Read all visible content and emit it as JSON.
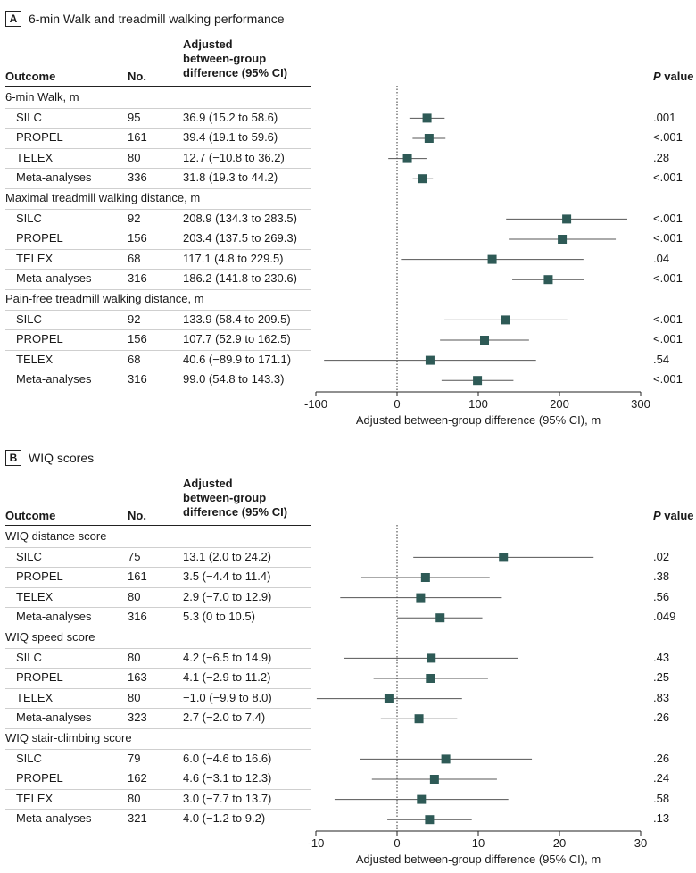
{
  "chart_data": [
    {
      "type": "forest",
      "panel": "A",
      "title": "6-min Walk and treadmill walking performance",
      "columns": {
        "outcome": "Outcome",
        "no": "No.",
        "diff": [
          "Adjusted",
          "between-group",
          "difference (95% CI)"
        ],
        "p_italic": "P",
        "p_rest": " value"
      },
      "xlabel": "Adjusted between-group difference (95% CI), m",
      "xlim": [
        -100,
        300
      ],
      "xticks": [
        -100,
        0,
        100,
        200,
        300
      ],
      "xtick_labels": [
        "-100",
        "0",
        "100",
        "200",
        "300"
      ],
      "groups": [
        {
          "title": "6-min Walk, m",
          "rows": [
            {
              "label": "SILC",
              "n": "95",
              "text": "36.9 (15.2 to 58.6)",
              "est": 36.9,
              "lo": 15.2,
              "hi": 58.6,
              "p": ".001"
            },
            {
              "label": "PROPEL",
              "n": "161",
              "text": "39.4 (19.1 to 59.6)",
              "est": 39.4,
              "lo": 19.1,
              "hi": 59.6,
              "p": "<.001"
            },
            {
              "label": "TELEX",
              "n": "80",
              "text": "12.7 (−10.8 to 36.2)",
              "est": 12.7,
              "lo": -10.8,
              "hi": 36.2,
              "p": ".28"
            },
            {
              "label": "Meta-analyses",
              "n": "336",
              "text": "31.8 (19.3 to 44.2)",
              "est": 31.8,
              "lo": 19.3,
              "hi": 44.2,
              "p": "<.001"
            }
          ]
        },
        {
          "title": "Maximal treadmill walking distance, m",
          "rows": [
            {
              "label": "SILC",
              "n": "92",
              "text": "208.9 (134.3 to 283.5)",
              "est": 208.9,
              "lo": 134.3,
              "hi": 283.5,
              "p": "<.001"
            },
            {
              "label": "PROPEL",
              "n": "156",
              "text": "203.4 (137.5 to 269.3)",
              "est": 203.4,
              "lo": 137.5,
              "hi": 269.3,
              "p": "<.001"
            },
            {
              "label": "TELEX",
              "n": "68",
              "text": "117.1 (4.8 to 229.5)",
              "est": 117.1,
              "lo": 4.8,
              "hi": 229.5,
              "p": ".04"
            },
            {
              "label": "Meta-analyses",
              "n": "316",
              "text": "186.2 (141.8 to 230.6)",
              "est": 186.2,
              "lo": 141.8,
              "hi": 230.6,
              "p": "<.001"
            }
          ]
        },
        {
          "title": "Pain-free treadmill walking distance, m",
          "rows": [
            {
              "label": "SILC",
              "n": "92",
              "text": "133.9 (58.4 to 209.5)",
              "est": 133.9,
              "lo": 58.4,
              "hi": 209.5,
              "p": "<.001"
            },
            {
              "label": "PROPEL",
              "n": "156",
              "text": "107.7 (52.9 to 162.5)",
              "est": 107.7,
              "lo": 52.9,
              "hi": 162.5,
              "p": "<.001"
            },
            {
              "label": "TELEX",
              "n": "68",
              "text": "40.6 (−89.9 to 171.1)",
              "est": 40.6,
              "lo": -89.9,
              "hi": 171.1,
              "p": ".54"
            },
            {
              "label": "Meta-analyses",
              "n": "316",
              "text": "99.0 (54.8 to 143.3)",
              "est": 99.0,
              "lo": 54.8,
              "hi": 143.3,
              "p": "<.001"
            }
          ]
        }
      ]
    },
    {
      "type": "forest",
      "panel": "B",
      "title": "WIQ scores",
      "columns": {
        "outcome": "Outcome",
        "no": "No.",
        "diff": [
          "Adjusted",
          "between-group",
          "difference (95% CI)"
        ],
        "p_italic": "P",
        "p_rest": " value"
      },
      "xlabel": "Adjusted between-group difference (95% CI), m",
      "xlim": [
        -10,
        30
      ],
      "xticks": [
        -10,
        0,
        10,
        20,
        30
      ],
      "xtick_labels": [
        "-10",
        "0",
        "10",
        "20",
        "30"
      ],
      "groups": [
        {
          "title": "WIQ distance score",
          "rows": [
            {
              "label": "SILC",
              "n": "75",
              "text": "13.1 (2.0 to 24.2)",
              "est": 13.1,
              "lo": 2.0,
              "hi": 24.2,
              "p": ".02"
            },
            {
              "label": "PROPEL",
              "n": "161",
              "text": "3.5 (−4.4 to 11.4)",
              "est": 3.5,
              "lo": -4.4,
              "hi": 11.4,
              "p": ".38"
            },
            {
              "label": "TELEX",
              "n": "80",
              "text": "2.9 (−7.0 to 12.9)",
              "est": 2.9,
              "lo": -7.0,
              "hi": 12.9,
              "p": ".56"
            },
            {
              "label": "Meta-analyses",
              "n": "316",
              "text": "5.3 (0 to 10.5)",
              "est": 5.3,
              "lo": 0.0,
              "hi": 10.5,
              "p": ".049"
            }
          ]
        },
        {
          "title": "WIQ speed score",
          "rows": [
            {
              "label": "SILC",
              "n": "80",
              "text": "4.2 (−6.5 to 14.9)",
              "est": 4.2,
              "lo": -6.5,
              "hi": 14.9,
              "p": ".43"
            },
            {
              "label": "PROPEL",
              "n": "163",
              "text": "4.1 (−2.9 to 11.2)",
              "est": 4.1,
              "lo": -2.9,
              "hi": 11.2,
              "p": ".25"
            },
            {
              "label": "TELEX",
              "n": "80",
              "text": "−1.0 (−9.9 to 8.0)",
              "est": -1.0,
              "lo": -9.9,
              "hi": 8.0,
              "p": ".83"
            },
            {
              "label": "Meta-analyses",
              "n": "323",
              "text": "2.7 (−2.0 to 7.4)",
              "est": 2.7,
              "lo": -2.0,
              "hi": 7.4,
              "p": ".26"
            }
          ]
        },
        {
          "title": "WIQ stair-climbing score",
          "rows": [
            {
              "label": "SILC",
              "n": "79",
              "text": "6.0 (−4.6 to 16.6)",
              "est": 6.0,
              "lo": -4.6,
              "hi": 16.6,
              "p": ".26"
            },
            {
              "label": "PROPEL",
              "n": "162",
              "text": "4.6 (−3.1 to 12.3)",
              "est": 4.6,
              "lo": -3.1,
              "hi": 12.3,
              "p": ".24"
            },
            {
              "label": "TELEX",
              "n": "80",
              "text": "3.0 (−7.7 to 13.7)",
              "est": 3.0,
              "lo": -7.7,
              "hi": 13.7,
              "p": ".58"
            },
            {
              "label": "Meta-analyses",
              "n": "321",
              "text": "4.0 (−1.2 to 9.2)",
              "est": 4.0,
              "lo": -1.2,
              "hi": 9.2,
              "p": ".13"
            }
          ]
        }
      ]
    }
  ],
  "colors": {
    "marker": "#2e5a56",
    "ci_line": "#555555",
    "axis": "#222222",
    "zero_line": "#333333",
    "row_rule": "#cfcfcf"
  }
}
